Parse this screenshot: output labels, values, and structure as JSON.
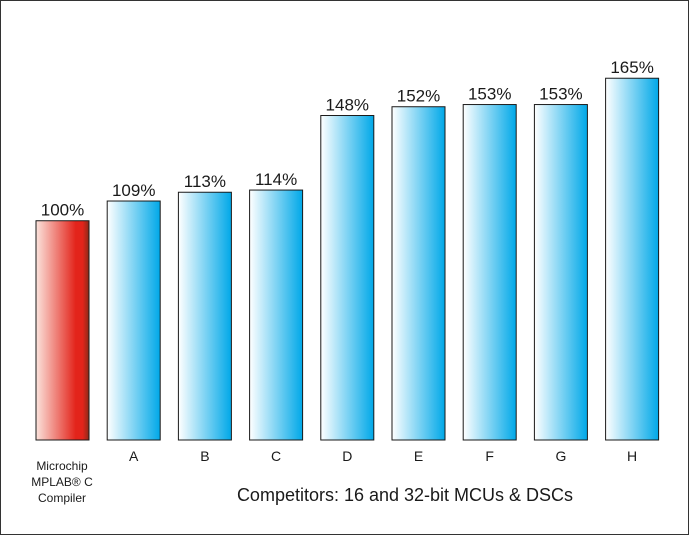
{
  "chart_data": {
    "type": "bar",
    "categories": [
      "Microchip MPLAB® C Compiler",
      "A",
      "B",
      "C",
      "D",
      "E",
      "F",
      "G",
      "H"
    ],
    "category_labels": [
      [
        "Microchip",
        "MPLAB® C",
        "Compiler"
      ],
      [
        "A"
      ],
      [
        "B"
      ],
      [
        "C"
      ],
      [
        "D"
      ],
      [
        "E"
      ],
      [
        "F"
      ],
      [
        "G"
      ],
      [
        "H"
      ]
    ],
    "values": [
      100,
      109,
      113,
      114,
      148,
      152,
      153,
      153,
      165
    ],
    "value_labels": [
      "100%",
      "109%",
      "113%",
      "114%",
      "148%",
      "152%",
      "153%",
      "153%",
      "165%"
    ],
    "xlabel": "Competitors: 16 and 32-bit MCUs & DSCs",
    "ylabel": "",
    "title": "",
    "ylim": [
      0,
      187
    ],
    "grid": false,
    "legend": "none",
    "colors": {
      "highlight_light": "#fbe3dc",
      "highlight_dark": "#e3241b",
      "highlight_edge": "#8a2a1a",
      "bar_light": "#ffffff",
      "bar_dark": "#00a8e8",
      "bar_stroke": "#1a1a1a",
      "frame": "#333333"
    }
  }
}
